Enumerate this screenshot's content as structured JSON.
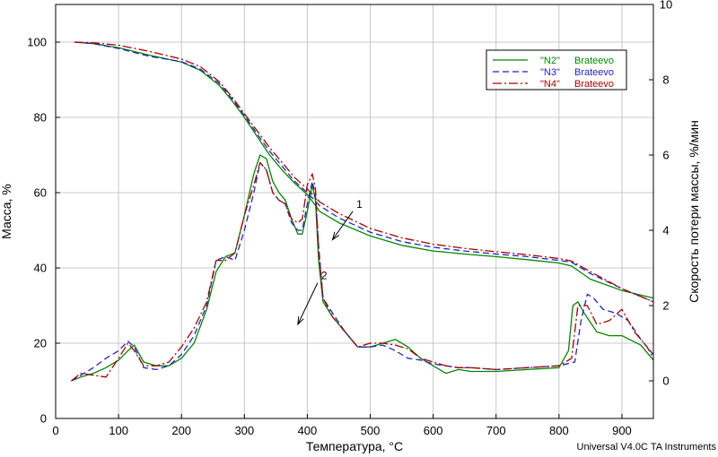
{
  "footer": "Universal V4.0C TA Instruments",
  "chart_data": {
    "type": "line",
    "xlabel": "Температура, °С",
    "ylabel_left": "Масса, %",
    "ylabel_right": "Скорость потери массы, %/мин",
    "xlim": [
      0,
      950
    ],
    "ylim_left": [
      0,
      110
    ],
    "ylim_right": [
      -1,
      10
    ],
    "xticks": [
      "0",
      "100",
      "200",
      "300",
      "400",
      "500",
      "600",
      "700",
      "800",
      "900"
    ],
    "yticks_left": [
      "0",
      "20",
      "40",
      "60",
      "80",
      "100"
    ],
    "yticks_right": [
      "0",
      "2",
      "4",
      "6",
      "8",
      "10"
    ],
    "grid": true,
    "legend": {
      "position": "top-right",
      "entries": [
        {
          "label": "\"N2\"",
          "sample": "Brateevo",
          "color": "#008800",
          "dash": "solid"
        },
        {
          "label": "\"N3\"",
          "sample": "Brateevo",
          "color": "#2222cc",
          "dash": "dashed"
        },
        {
          "label": "\"N4\"",
          "sample": "Brateevo",
          "color": "#aa0000",
          "dash": "dashdot"
        }
      ]
    },
    "annotations": [
      {
        "text": "1",
        "x": 478,
        "y_left": 56,
        "target_x": 440,
        "target_y_left": 47.5
      },
      {
        "text": "2",
        "x": 422,
        "y_left": 37,
        "target_x": 385,
        "target_y_left": 25
      }
    ],
    "mass_series": [
      {
        "name": "\"N2\"",
        "axis": "left",
        "color": "#008800",
        "dash": "solid",
        "x": [
          30,
          60,
          100,
          150,
          200,
          230,
          260,
          280,
          300,
          320,
          340,
          360,
          380,
          400,
          420,
          450,
          500,
          550,
          600,
          650,
          700,
          750,
          800,
          820,
          850,
          900,
          950
        ],
        "y": [
          100,
          99.6,
          98.5,
          96.5,
          94.7,
          92.5,
          88.5,
          84.5,
          80,
          75,
          70,
          66,
          62.5,
          59.5,
          55,
          52,
          48.5,
          46,
          44.5,
          43.7,
          43,
          42.2,
          41.3,
          40.5,
          37,
          34,
          32
        ]
      },
      {
        "name": "\"N3\"",
        "axis": "left",
        "color": "#2222cc",
        "dash": "dashed",
        "x": [
          30,
          60,
          100,
          150,
          200,
          230,
          260,
          280,
          300,
          320,
          340,
          360,
          380,
          400,
          420,
          450,
          500,
          550,
          600,
          650,
          700,
          750,
          800,
          820,
          850,
          900,
          950
        ],
        "y": [
          100,
          99.6,
          98.3,
          96.2,
          94.8,
          92.8,
          89,
          85,
          80.5,
          75.7,
          71,
          67,
          63,
          60,
          56.5,
          53.3,
          49.5,
          47,
          45.5,
          44.5,
          43.7,
          43,
          42,
          41.5,
          38.5,
          34.5,
          31
        ]
      },
      {
        "name": "\"N4\"",
        "axis": "left",
        "color": "#aa0000",
        "dash": "dashdot",
        "x": [
          30,
          60,
          100,
          150,
          200,
          230,
          260,
          280,
          300,
          320,
          340,
          360,
          380,
          400,
          420,
          450,
          500,
          550,
          600,
          650,
          700,
          750,
          800,
          820,
          850,
          900,
          950
        ],
        "y": [
          100,
          99.8,
          99.2,
          97.5,
          95.5,
          93.5,
          89.5,
          85.5,
          81,
          76.5,
          72,
          68,
          64,
          61,
          57.5,
          54.5,
          50.5,
          48,
          46.3,
          45.2,
          44.3,
          43.5,
          42.5,
          41.8,
          39,
          34.5,
          31
        ]
      }
    ],
    "rate_series": [
      {
        "name": "\"N2\"",
        "axis": "right",
        "color": "#008800",
        "dash": "solid",
        "x": [
          25,
          40,
          60,
          80,
          100,
          115,
          125,
          140,
          160,
          180,
          200,
          220,
          240,
          255,
          270,
          285,
          300,
          315,
          325,
          335,
          345,
          355,
          365,
          375,
          385,
          392,
          400,
          408,
          413,
          418,
          425,
          440,
          460,
          480,
          500,
          520,
          540,
          560,
          580,
          600,
          620,
          640,
          660,
          700,
          750,
          800,
          815,
          822,
          830,
          840,
          860,
          880,
          900,
          930,
          950
        ],
        "y": [
          0,
          0.1,
          0.2,
          0.35,
          0.55,
          0.8,
          0.95,
          0.5,
          0.4,
          0.4,
          0.6,
          1.0,
          1.9,
          2.9,
          3.3,
          3.4,
          4.4,
          5.5,
          6.0,
          5.9,
          5.3,
          5.0,
          4.8,
          4.3,
          3.9,
          3.9,
          4.5,
          5.2,
          4.8,
          3.2,
          2.1,
          1.7,
          1.3,
          0.9,
          0.9,
          1.0,
          1.1,
          0.9,
          0.6,
          0.4,
          0.2,
          0.3,
          0.25,
          0.25,
          0.3,
          0.35,
          0.8,
          2.0,
          2.1,
          1.8,
          1.3,
          1.2,
          1.2,
          0.95,
          0.55
        ]
      },
      {
        "name": "\"N3\"",
        "axis": "right",
        "color": "#2222cc",
        "dash": "dashed",
        "x": [
          25,
          40,
          60,
          80,
          100,
          115,
          125,
          140,
          160,
          180,
          200,
          220,
          240,
          255,
          270,
          285,
          300,
          315,
          325,
          335,
          345,
          355,
          365,
          375,
          385,
          392,
          400,
          408,
          413,
          418,
          425,
          440,
          460,
          480,
          500,
          520,
          540,
          560,
          580,
          600,
          620,
          640,
          660,
          700,
          750,
          800,
          825,
          835,
          845,
          855,
          870,
          890,
          910,
          930,
          950
        ],
        "y": [
          0,
          0.15,
          0.35,
          0.6,
          0.8,
          1.05,
          0.9,
          0.35,
          0.3,
          0.4,
          0.7,
          1.2,
          2.0,
          3.2,
          3.3,
          3.2,
          4.0,
          5.0,
          5.8,
          5.6,
          5.0,
          4.8,
          4.7,
          4.2,
          4.0,
          4.0,
          4.7,
          5.3,
          4.9,
          3.6,
          2.2,
          1.8,
          1.3,
          0.9,
          0.9,
          0.95,
          0.8,
          0.6,
          0.55,
          0.45,
          0.4,
          0.35,
          0.35,
          0.3,
          0.35,
          0.4,
          0.5,
          1.6,
          2.3,
          2.2,
          1.9,
          1.8,
          1.6,
          1.1,
          0.7
        ]
      },
      {
        "name": "\"N4\"",
        "axis": "right",
        "color": "#aa0000",
        "dash": "dashdot",
        "x": [
          25,
          40,
          60,
          80,
          100,
          115,
          125,
          140,
          160,
          180,
          200,
          220,
          240,
          255,
          270,
          285,
          300,
          315,
          325,
          335,
          345,
          355,
          365,
          375,
          385,
          392,
          400,
          408,
          413,
          418,
          425,
          440,
          460,
          480,
          500,
          520,
          540,
          560,
          580,
          600,
          620,
          640,
          660,
          700,
          750,
          800,
          820,
          830,
          845,
          860,
          880,
          900,
          920,
          940,
          950
        ],
        "y": [
          0,
          0.2,
          0.15,
          0.1,
          0.6,
          1.0,
          0.8,
          0.4,
          0.4,
          0.5,
          0.9,
          1.4,
          2.1,
          3.2,
          3.2,
          3.4,
          4.4,
          5.2,
          5.8,
          5.6,
          5.0,
          4.8,
          4.7,
          4.3,
          4.2,
          4.3,
          5.2,
          5.5,
          5.1,
          3.5,
          2.2,
          1.7,
          1.3,
          0.9,
          1.0,
          1.0,
          0.95,
          0.85,
          0.6,
          0.5,
          0.4,
          0.35,
          0.35,
          0.3,
          0.35,
          0.4,
          0.6,
          2.0,
          2.0,
          1.5,
          1.6,
          1.9,
          1.3,
          0.9,
          0.6
        ]
      }
    ]
  }
}
